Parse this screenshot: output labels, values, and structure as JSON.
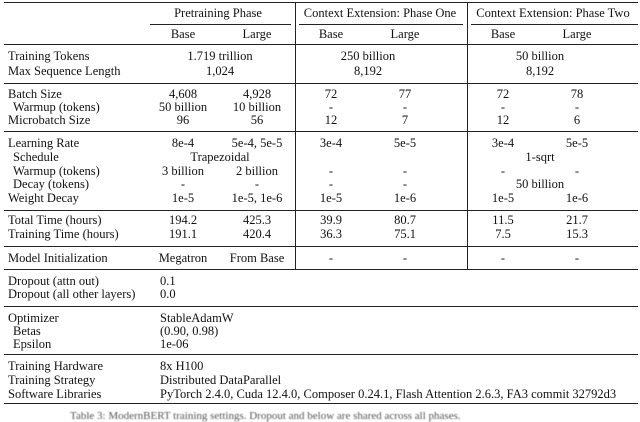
{
  "header": {
    "groups": [
      "Pretraining Phase",
      "Context Extension: Phase One",
      "Context Extension: Phase Two"
    ],
    "columns": [
      "Base",
      "Large",
      "Base",
      "Large",
      "Base",
      "Large"
    ]
  },
  "sections": [
    {
      "rows": [
        {
          "label": "Training Tokens",
          "cells": [
            "1.719 trillion",
            "250 billion",
            "50 billion"
          ]
        },
        {
          "label": "Max Sequence Length",
          "cells": [
            "1,024",
            "8,192",
            "8,192"
          ]
        }
      ]
    },
    {
      "rows": [
        {
          "label": "Batch Size",
          "cells": [
            "4,608",
            "4,928",
            "72",
            "77",
            "72",
            "78"
          ]
        },
        {
          "label": "Warmup (tokens)",
          "cells": [
            "50 billion",
            "10 billion",
            "-",
            "-",
            "-",
            "-"
          ]
        },
        {
          "label": "Microbatch Size",
          "cells": [
            "96",
            "56",
            "12",
            "7",
            "12",
            "6"
          ]
        }
      ]
    },
    {
      "rows": [
        {
          "label": "Learning Rate",
          "cells": [
            "8e-4",
            "5e-4, 5e-5",
            "3e-4",
            "5e-5",
            "3e-4",
            "5e-5"
          ]
        },
        {
          "label": "Schedule",
          "cells": [
            "Trapezoidal",
            null,
            "1-sqrt"
          ]
        },
        {
          "label": "Warmup (tokens)",
          "cells": [
            "3 billion",
            "2 billion",
            "-",
            "-",
            "-",
            "-"
          ]
        },
        {
          "label": "Decay (tokens)",
          "cells": [
            "-",
            "-",
            "-",
            "-",
            "50 billion"
          ]
        },
        {
          "label": "Weight Decay",
          "cells": [
            "1e-5",
            "1e-5, 1e-6",
            "1e-5",
            "1e-6",
            "1e-5",
            "1e-6"
          ]
        }
      ]
    },
    {
      "rows": [
        {
          "label": "Total Time (hours)",
          "cells": [
            "194.2",
            "425.3",
            "39.9",
            "80.7",
            "11.5",
            "21.7"
          ]
        },
        {
          "label": "Training Time (hours)",
          "cells": [
            "191.1",
            "420.4",
            "36.3",
            "75.1",
            "7.5",
            "15.3"
          ]
        }
      ]
    },
    {
      "rows": [
        {
          "label": "Model Initialization",
          "cells": [
            "Megatron",
            "From Base",
            "-",
            "-",
            "-",
            "-"
          ]
        }
      ]
    },
    {
      "rows": [
        {
          "label": "Dropout (attn out)",
          "cells": [
            "0.1"
          ]
        },
        {
          "label": "Dropout (all other layers)",
          "cells": [
            "0.0"
          ]
        }
      ]
    },
    {
      "rows": [
        {
          "label": "Optimizer",
          "cells": [
            "StableAdamW"
          ]
        },
        {
          "label": "Betas",
          "cells": [
            "(0.90, 0.98)"
          ]
        },
        {
          "label": "Epsilon",
          "cells": [
            "1e-06"
          ]
        }
      ]
    },
    {
      "rows": [
        {
          "label": "Training Hardware",
          "cells": [
            "8x H100"
          ]
        },
        {
          "label": "Training Strategy",
          "cells": [
            "Distributed DataParallel"
          ]
        },
        {
          "label": "Software Libraries",
          "cells": [
            "PyTorch 2.4.0, Cuda 12.4.0, Composer 0.24.1, Flash Attention 2.6.3, FA3 commit 32792d3"
          ]
        }
      ]
    }
  ],
  "caption": "Table 3: ModernBERT training settings. Dropout and below are shared across all phases."
}
